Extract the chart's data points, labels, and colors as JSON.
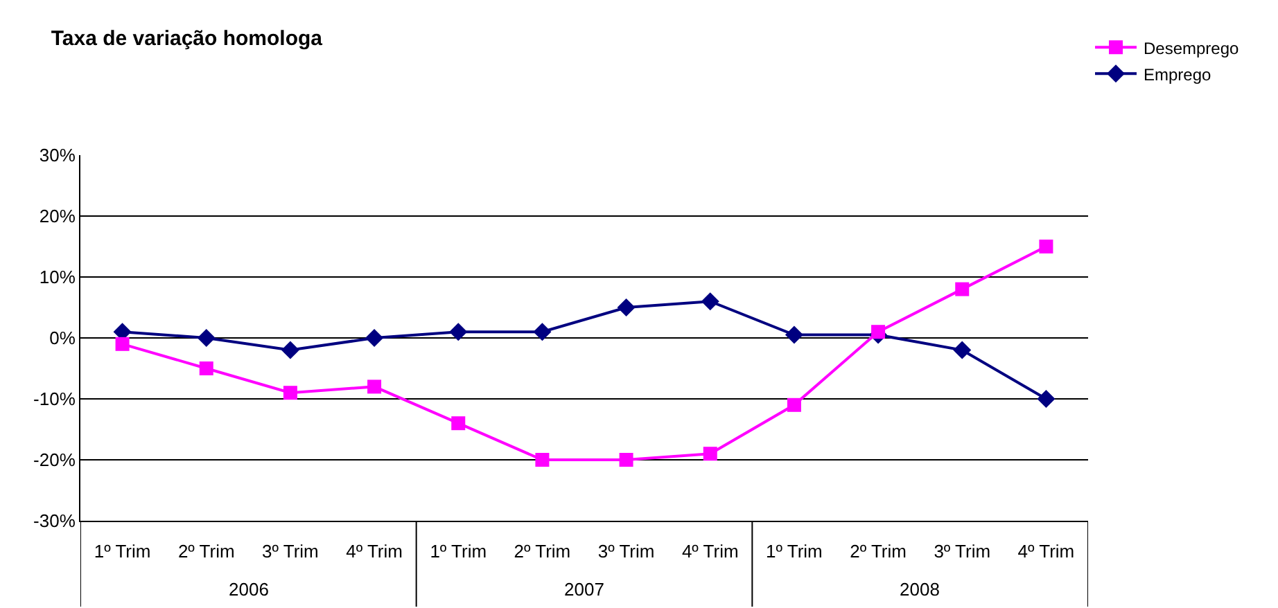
{
  "chart_data": {
    "type": "line",
    "title": "Taxa de variação homologa",
    "categories": [
      "1º Trim",
      "2º Trim",
      "3º Trim",
      "4º Trim",
      "1º Trim",
      "2º Trim",
      "3º Trim",
      "4º Trim",
      "1º Trim",
      "2º Trim",
      "3º Trim",
      "4º Trim"
    ],
    "series": [
      {
        "name": "Desemprego",
        "color": "#ff00ff",
        "marker": "square",
        "values": [
          -1,
          -5,
          -9,
          -8,
          -14,
          -20,
          -20,
          -19,
          -11,
          1,
          8,
          15
        ]
      },
      {
        "name": "Emprego",
        "color": "#000080",
        "marker": "diamond",
        "values": [
          1,
          0,
          -2,
          0,
          1,
          1,
          5,
          6,
          0.5,
          0.5,
          -2,
          -10
        ]
      }
    ],
    "ylim": [
      -30,
      30
    ],
    "yticks": [
      {
        "value": -30,
        "label": "-30%"
      },
      {
        "value": -20,
        "label": "-20%"
      },
      {
        "value": -10,
        "label": "-10%"
      },
      {
        "value": 0,
        "label": "0%"
      },
      {
        "value": 10,
        "label": "10%"
      },
      {
        "value": 20,
        "label": "20%"
      },
      {
        "value": 30,
        "label": "30%"
      }
    ],
    "annotations": [
      "2006",
      "2007",
      "2008"
    ],
    "grid": "y",
    "legend": "top right"
  }
}
